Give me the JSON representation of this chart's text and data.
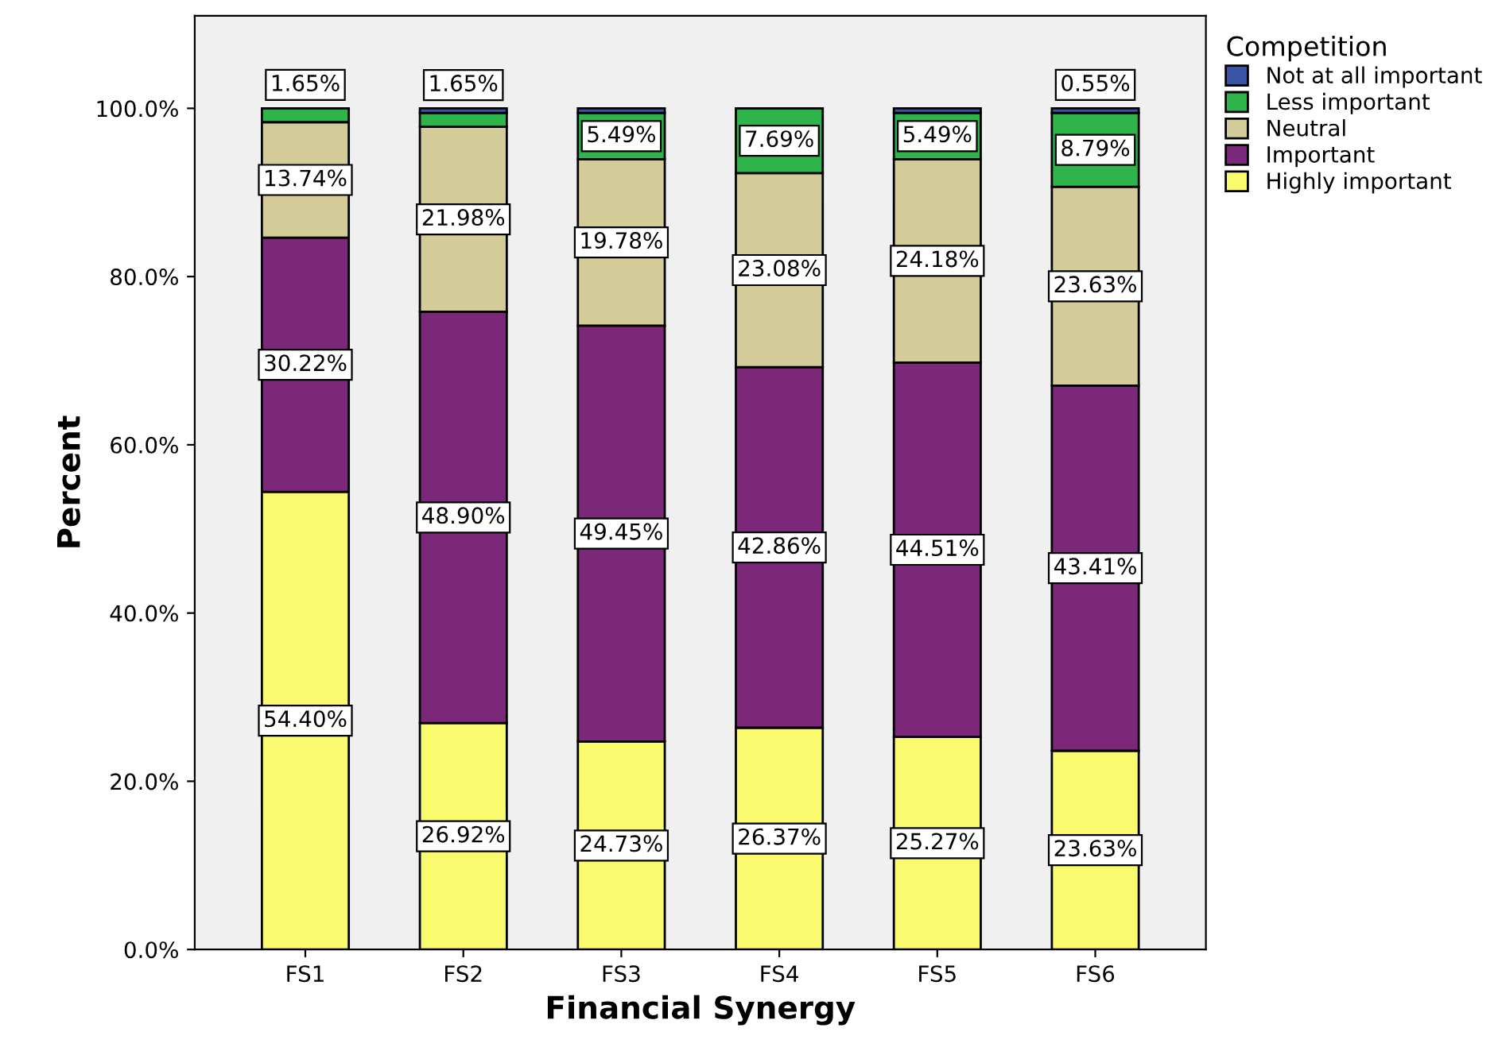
{
  "chart_data": {
    "type": "bar",
    "stacked": true,
    "xlabel": "Financial Synergy",
    "ylabel": "Percent",
    "legend_title": "Competition",
    "legend": "right",
    "grid": false,
    "categories": [
      "FS1",
      "FS2",
      "FS3",
      "FS4",
      "FS5",
      "FS6"
    ],
    "ylim": [
      0,
      111
    ],
    "yticks": [
      {
        "value": 0,
        "label": "0.0%"
      },
      {
        "value": 20,
        "label": "20.0%"
      },
      {
        "value": 40,
        "label": "40.0%"
      },
      {
        "value": 60,
        "label": "60.0%"
      },
      {
        "value": 80,
        "label": "80.0%"
      },
      {
        "value": 100,
        "label": "100.0%"
      }
    ],
    "series": [
      {
        "name": "Highly important",
        "color": "#fafa6e",
        "values": [
          54.4,
          26.92,
          24.73,
          26.37,
          25.27,
          23.63
        ],
        "value_labels": [
          "54.40%",
          "26.92%",
          "24.73%",
          "26.37%",
          "25.27%",
          "23.63%"
        ]
      },
      {
        "name": "Important",
        "color": "#7b287b",
        "values": [
          30.22,
          48.9,
          49.45,
          42.86,
          44.51,
          43.41
        ],
        "value_labels": [
          "30.22%",
          "48.90%",
          "49.45%",
          "42.86%",
          "44.51%",
          "43.41%"
        ]
      },
      {
        "name": "Neutral",
        "color": "#d3cb98",
        "values": [
          13.74,
          21.98,
          19.78,
          23.08,
          24.18,
          23.63
        ],
        "value_labels": [
          "13.74%",
          "21.98%",
          "19.78%",
          "23.08%",
          "24.18%",
          "23.63%"
        ]
      },
      {
        "name": "Less important",
        "color": "#2fb34b",
        "values": [
          1.65,
          1.65,
          5.49,
          7.69,
          5.49,
          8.79
        ],
        "value_labels": [
          "1.65%",
          "1.65%",
          "5.49%",
          "7.69%",
          "5.49%",
          "8.79%"
        ]
      },
      {
        "name": "Not at all important",
        "color": "#3b55a5",
        "values": [
          null,
          0.55,
          0.55,
          null,
          0.55,
          0.55
        ],
        "value_labels": [
          null,
          null,
          null,
          null,
          null,
          "0.55%"
        ]
      }
    ]
  }
}
